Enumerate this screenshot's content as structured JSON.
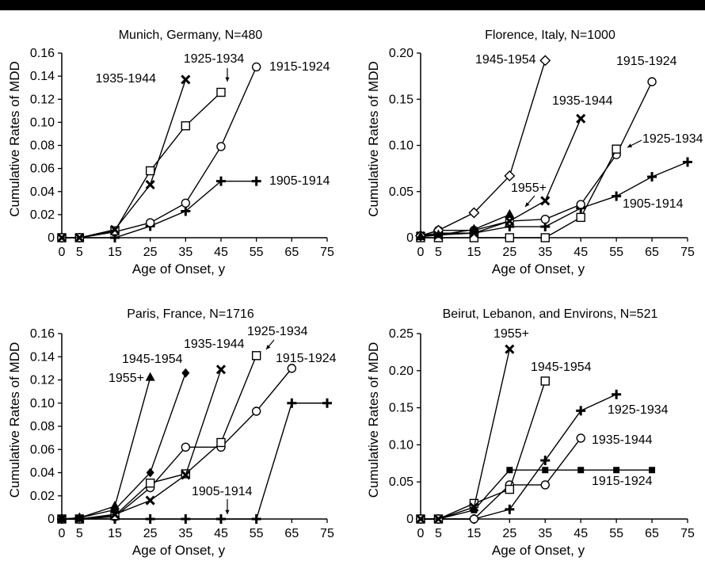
{
  "chart_data": [
    {
      "type": "line",
      "title": "Munich, Germany, N=480",
      "xlabel": "Age of Onset, y",
      "ylabel": "Cumulative Rates of MDD",
      "xticks": [
        0,
        5,
        15,
        25,
        35,
        45,
        55,
        65,
        75
      ],
      "yticks": [
        "0",
        "0.02",
        "0.04",
        "0.06",
        "0.08",
        "0.10",
        "0.12",
        "0.14",
        "0.16"
      ],
      "ylim": [
        0,
        0.16
      ],
      "series": [
        {
          "name": "1905-1914",
          "marker": "plus",
          "x": [
            0,
            5,
            15,
            25,
            35,
            45,
            55
          ],
          "y": [
            0,
            0,
            0,
            0.01,
            0.023,
            0.049,
            0.049
          ]
        },
        {
          "name": "1915-1924",
          "marker": "circle",
          "x": [
            0,
            5,
            15,
            25,
            35,
            45,
            55
          ],
          "y": [
            0,
            0,
            0.005,
            0.013,
            0.03,
            0.079,
            0.148
          ]
        },
        {
          "name": "1925-1934",
          "marker": "square",
          "x": [
            0,
            5,
            15,
            25,
            35,
            45
          ],
          "y": [
            0,
            0,
            0.006,
            0.058,
            0.097,
            0.126
          ]
        },
        {
          "name": "1935-1944",
          "marker": "x",
          "x": [
            0,
            5,
            15,
            25,
            35
          ],
          "y": [
            0,
            0,
            0.007,
            0.046,
            0.137
          ]
        }
      ]
    },
    {
      "type": "line",
      "title": "Florence, Italy, N=1000",
      "xlabel": "Age of Onset, y",
      "ylabel": "Cumulative Rates of MDD",
      "xticks": [
        0,
        5,
        15,
        25,
        35,
        45,
        55,
        65,
        75
      ],
      "yticks": [
        "0",
        "0.05",
        "0.10",
        "0.15",
        "0.20"
      ],
      "ylim": [
        0,
        0.2
      ],
      "series": [
        {
          "name": "1905-1914",
          "marker": "plus",
          "x": [
            0,
            5,
            15,
            25,
            35,
            45,
            55,
            65,
            75
          ],
          "y": [
            0.002,
            0.005,
            0.005,
            0.012,
            0.012,
            0.032,
            0.045,
            0.066,
            0.082
          ]
        },
        {
          "name": "1915-1924",
          "marker": "circle",
          "x": [
            0,
            5,
            15,
            25,
            35,
            45,
            55,
            65
          ],
          "y": [
            0.002,
            0.008,
            0.008,
            0.018,
            0.02,
            0.036,
            0.09,
            0.169
          ]
        },
        {
          "name": "1925-1934",
          "marker": "square",
          "x": [
            0,
            5,
            15,
            25,
            35,
            45,
            55
          ],
          "y": [
            0,
            0,
            0,
            0,
            0,
            0.022,
            0.096
          ]
        },
        {
          "name": "1935-1944",
          "marker": "x",
          "x": [
            0,
            5,
            15,
            25,
            35,
            45
          ],
          "y": [
            0.002,
            0.003,
            0.005,
            0.018,
            0.04,
            0.129
          ]
        },
        {
          "name": "1945-1954",
          "marker": "diamond-open",
          "x": [
            0,
            5,
            15,
            25,
            35
          ],
          "y": [
            0.002,
            0.008,
            0.027,
            0.067,
            0.192
          ]
        },
        {
          "name": "1955+",
          "marker": "triangle",
          "x": [
            0,
            5,
            15,
            25
          ],
          "y": [
            0.001,
            0.003,
            0.009,
            0.025
          ]
        }
      ]
    },
    {
      "type": "line",
      "title": "Paris, France, N=1716",
      "xlabel": "Age of Onset, y",
      "ylabel": "Cumulative Rates of MDD",
      "xticks": [
        0,
        5,
        15,
        25,
        35,
        45,
        55,
        65,
        75
      ],
      "yticks": [
        "0",
        "0.02",
        "0.04",
        "0.06",
        "0.08",
        "0.10",
        "0.12",
        "0.14",
        "0.16"
      ],
      "ylim": [
        0,
        0.16
      ],
      "series": [
        {
          "name": "1905-1914",
          "marker": "plus",
          "x": [
            0,
            5,
            15,
            25,
            35,
            45,
            55,
            65,
            75
          ],
          "y": [
            0,
            0,
            0,
            0,
            0,
            0,
            0,
            0.1,
            0.1
          ]
        },
        {
          "name": "1915-1924",
          "marker": "circle",
          "x": [
            0,
            5,
            15,
            25,
            35,
            45,
            55,
            65
          ],
          "y": [
            0,
            0,
            0.002,
            0.027,
            0.062,
            0.062,
            0.093,
            0.13
          ]
        },
        {
          "name": "1925-1934",
          "marker": "square",
          "x": [
            0,
            5,
            15,
            25,
            35,
            45,
            55
          ],
          "y": [
            0,
            0,
            0.003,
            0.031,
            0.039,
            0.066,
            0.141
          ]
        },
        {
          "name": "1935-1944",
          "marker": "x",
          "x": [
            0,
            5,
            15,
            25,
            35,
            45
          ],
          "y": [
            0,
            0,
            0.004,
            0.016,
            0.038,
            0.129
          ]
        },
        {
          "name": "1945-1954",
          "marker": "diamond",
          "x": [
            0,
            5,
            15,
            25,
            35
          ],
          "y": [
            0,
            0.001,
            0.008,
            0.04,
            0.126
          ]
        },
        {
          "name": "1955+",
          "marker": "triangle",
          "x": [
            0,
            5,
            15,
            25
          ],
          "y": [
            0,
            0.001,
            0.011,
            0.122
          ]
        }
      ]
    },
    {
      "type": "line",
      "title": "Beirut, Lebanon, and Environs, N=521",
      "xlabel": "Age of Onset, y",
      "ylabel": "Cumulative Rates of MDD",
      "xticks": [
        0,
        5,
        15,
        25,
        35,
        45,
        55,
        65,
        75
      ],
      "yticks": [
        "0",
        "0.05",
        "0.10",
        "0.15",
        "0.20",
        "0.25"
      ],
      "ylim": [
        0,
        0.25
      ],
      "series": [
        {
          "name": "1915-1924",
          "marker": "square-filled",
          "x": [
            0,
            5,
            15,
            25,
            35,
            45,
            55,
            65
          ],
          "y": [
            0,
            0,
            0.012,
            0.066,
            0.066,
            0.066,
            0.066,
            0.066
          ]
        },
        {
          "name": "1925-1934",
          "marker": "plus",
          "x": [
            0,
            5,
            15,
            25,
            35,
            45,
            55
          ],
          "y": [
            0,
            0,
            0,
            0.013,
            0.079,
            0.146,
            0.168
          ]
        },
        {
          "name": "1935-1944",
          "marker": "circle",
          "x": [
            0,
            5,
            15,
            25,
            35,
            45
          ],
          "y": [
            0,
            0,
            0,
            0.046,
            0.046,
            0.109
          ]
        },
        {
          "name": "1945-1954",
          "marker": "square",
          "x": [
            0,
            5,
            15,
            25,
            35
          ],
          "y": [
            0,
            0,
            0.021,
            0.04,
            0.186
          ]
        },
        {
          "name": "1955+",
          "marker": "x",
          "x": [
            0,
            5,
            15,
            25
          ],
          "y": [
            0,
            0,
            0.016,
            0.229
          ]
        }
      ]
    }
  ]
}
